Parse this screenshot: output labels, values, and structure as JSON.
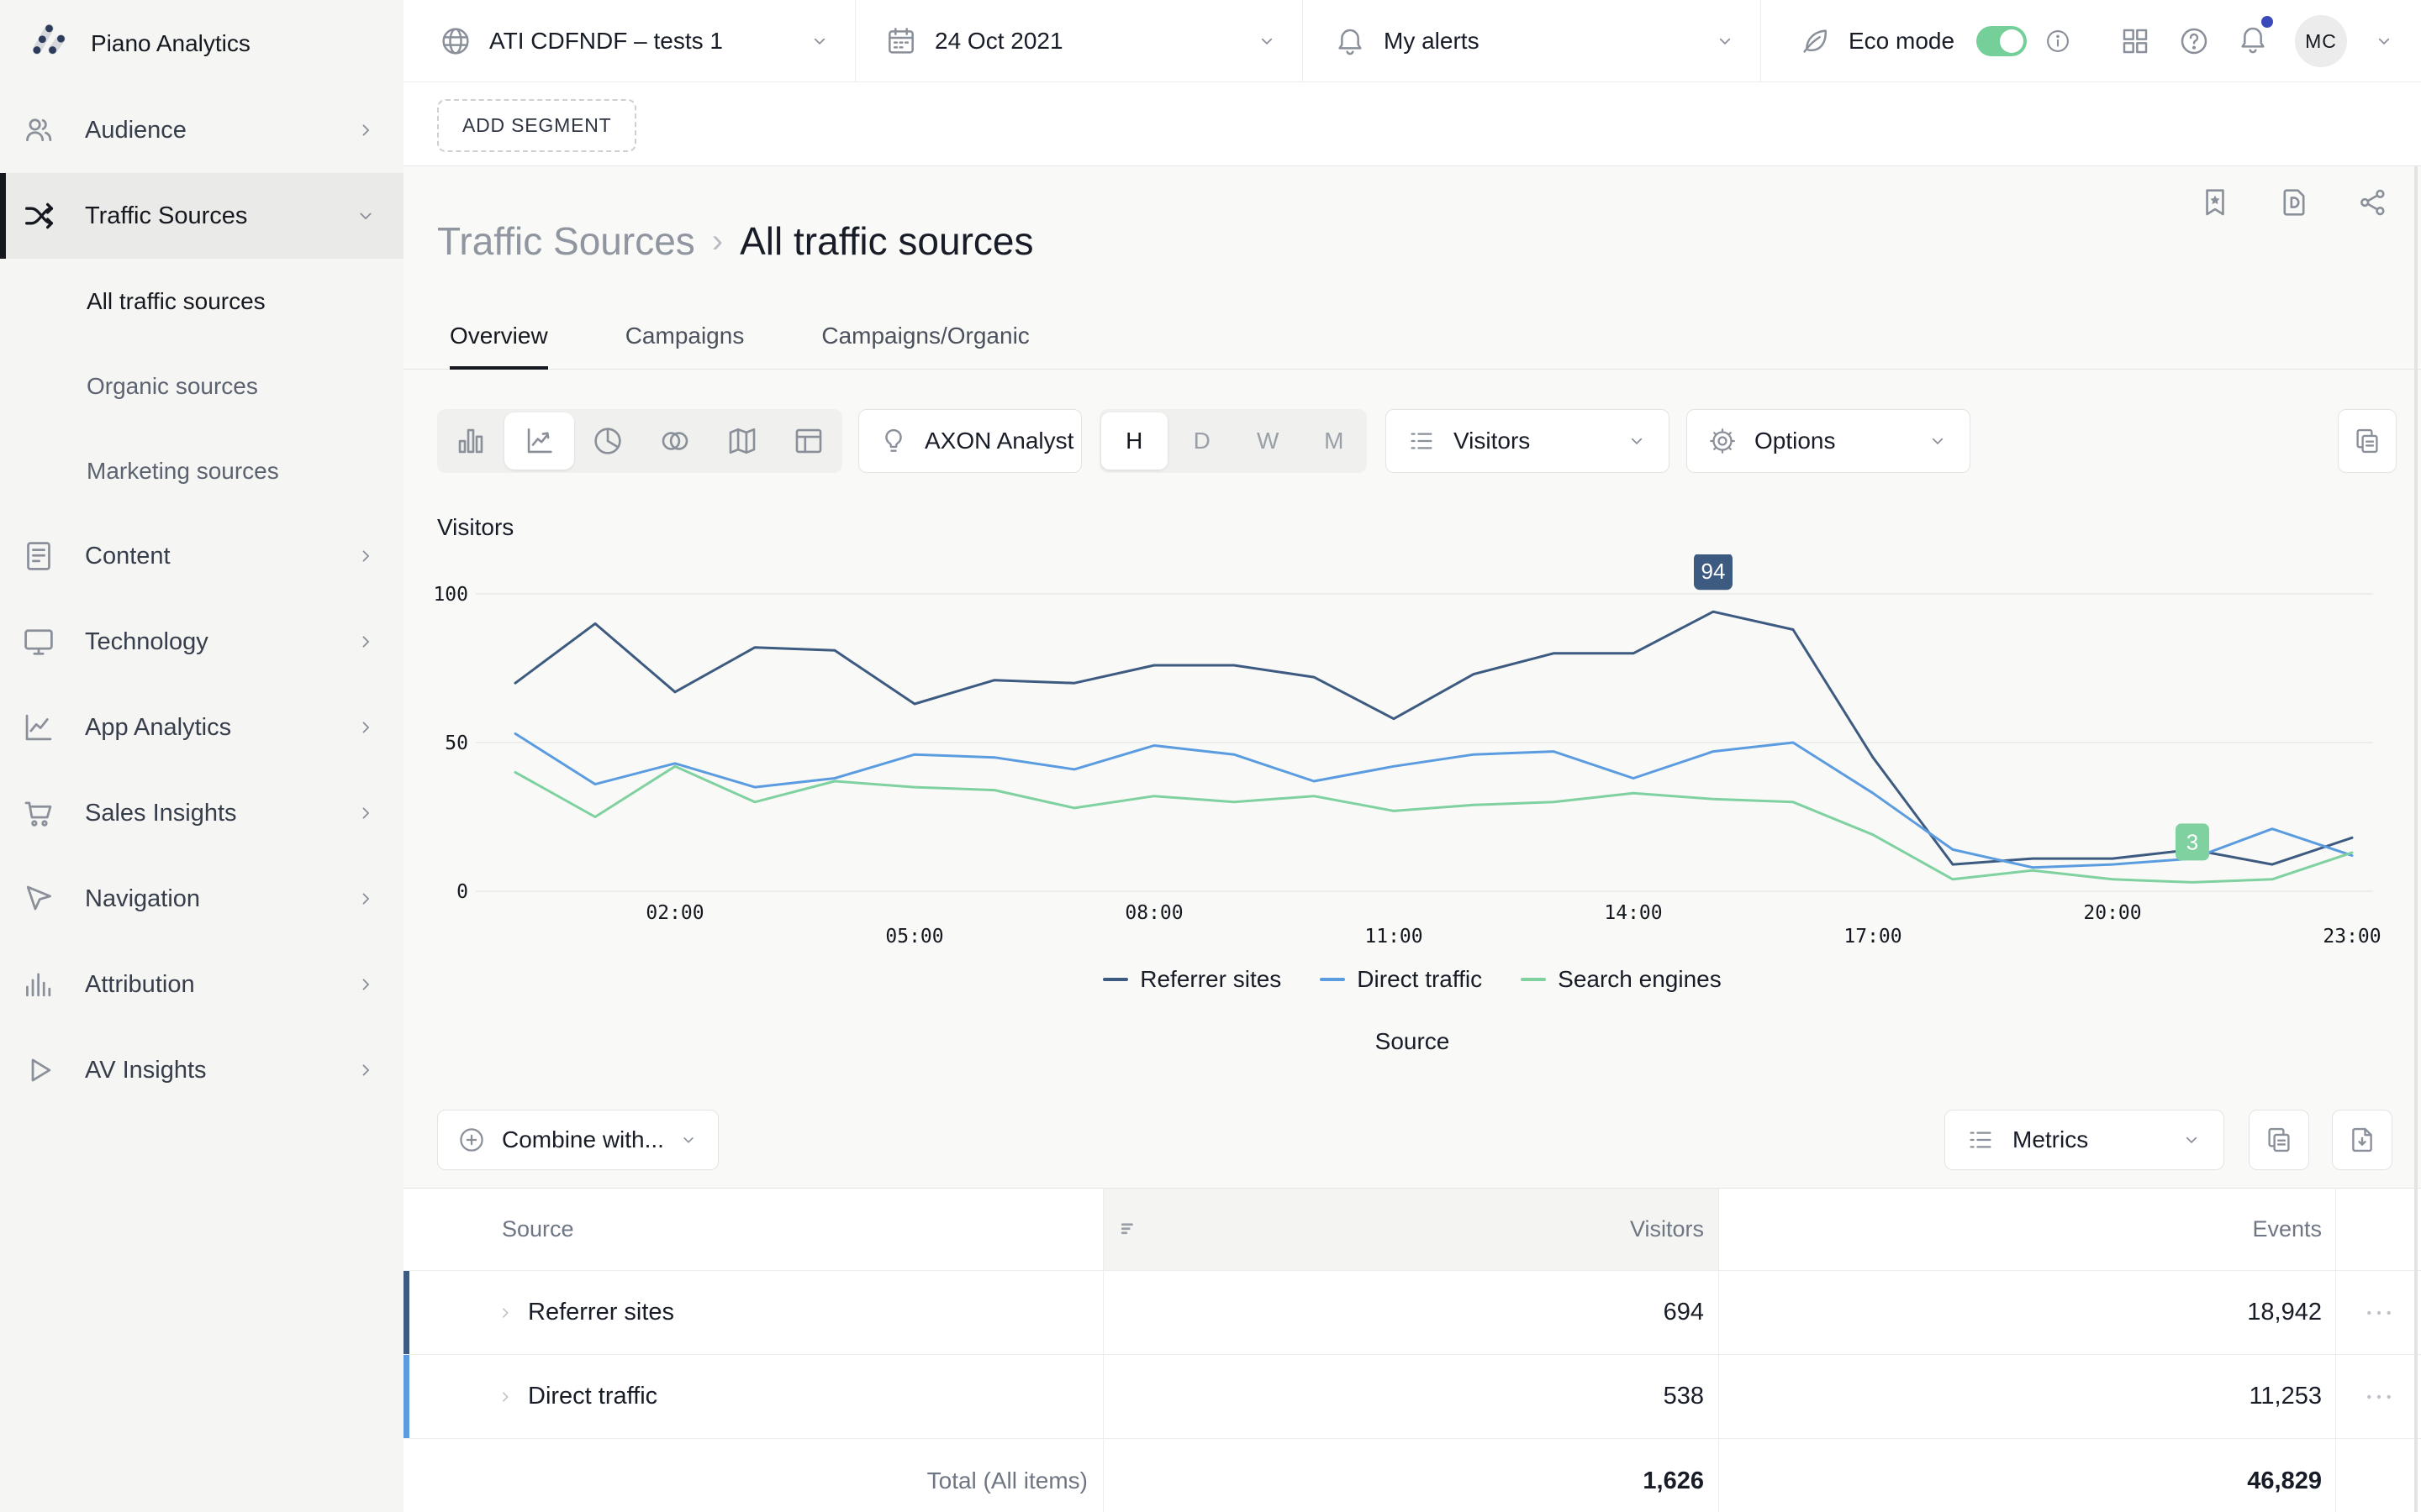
{
  "brand": {
    "name": "Piano Analytics"
  },
  "topbar": {
    "site": {
      "label": "ATI CDFNDF – tests 1"
    },
    "date": {
      "label": "24 Oct 2021"
    },
    "alerts": {
      "label": "My alerts"
    },
    "eco": {
      "label": "Eco mode",
      "enabled": true,
      "toggle_color": "#74cf98"
    },
    "user": {
      "initials": "MC"
    }
  },
  "sidebar": {
    "items": [
      {
        "label": "Audience",
        "icon": "users-icon",
        "chevron": "right",
        "active": false
      },
      {
        "label": "Traffic Sources",
        "icon": "shuffle-icon",
        "chevron": "down",
        "active": true,
        "children": [
          {
            "label": "All traffic sources",
            "active": true
          },
          {
            "label": "Organic sources",
            "active": false
          },
          {
            "label": "Marketing sources",
            "active": false
          }
        ]
      },
      {
        "label": "Content",
        "icon": "document-icon",
        "chevron": "right",
        "active": false
      },
      {
        "label": "Technology",
        "icon": "monitor-icon",
        "chevron": "right",
        "active": false
      },
      {
        "label": "App Analytics",
        "icon": "app-analytics-icon",
        "chevron": "right",
        "active": false
      },
      {
        "label": "Sales Insights",
        "icon": "cart-icon",
        "chevron": "right",
        "active": false
      },
      {
        "label": "Navigation",
        "icon": "cursor-icon",
        "chevron": "right",
        "active": false
      },
      {
        "label": "Attribution",
        "icon": "attribution-bars-icon",
        "chevron": "right",
        "active": false
      },
      {
        "label": "AV Insights",
        "icon": "play-icon",
        "chevron": "right",
        "active": false
      }
    ]
  },
  "segment_bar": {
    "add_segment_label": "ADD SEGMENT"
  },
  "page": {
    "breadcrumb": {
      "parent": "Traffic Sources",
      "separator": "›",
      "current": "All traffic sources"
    },
    "tabs": [
      {
        "label": "Overview",
        "active": true
      },
      {
        "label": "Campaigns",
        "active": false
      },
      {
        "label": "Campaigns/Organic",
        "active": false
      }
    ]
  },
  "toolbar": {
    "chart_types": [
      {
        "icon": "bar-chart-icon",
        "active": false
      },
      {
        "icon": "line-chart-icon",
        "active": true
      },
      {
        "icon": "pie-chart-icon",
        "active": false
      },
      {
        "icon": "venn-icon",
        "active": false
      },
      {
        "icon": "map-icon",
        "active": false
      },
      {
        "icon": "table-icon",
        "active": false
      }
    ],
    "axon_label": "AXON Analyst",
    "granularity": [
      {
        "label": "H",
        "active": true
      },
      {
        "label": "D",
        "active": false
      },
      {
        "label": "W",
        "active": false
      },
      {
        "label": "M",
        "active": false
      }
    ],
    "metric_dropdown": "Visitors",
    "options_dropdown": "Options"
  },
  "chart_data": {
    "type": "line",
    "title": "Visitors",
    "ylabel": "Visitors",
    "xlabel": "",
    "dimension_label": "Source",
    "x": [
      "00:00",
      "01:00",
      "02:00",
      "03:00",
      "04:00",
      "05:00",
      "06:00",
      "07:00",
      "08:00",
      "09:00",
      "10:00",
      "11:00",
      "12:00",
      "13:00",
      "14:00",
      "15:00",
      "16:00",
      "17:00",
      "18:00",
      "19:00",
      "20:00",
      "21:00",
      "22:00",
      "23:00"
    ],
    "x_tick_labels": [
      "02:00",
      "05:00",
      "08:00",
      "11:00",
      "14:00",
      "17:00",
      "20:00",
      "23:00"
    ],
    "ylim": [
      0,
      100
    ],
    "yticks": [
      0,
      50,
      100
    ],
    "grid": "horizontal",
    "legend_position": "bottom",
    "series": [
      {
        "name": "Referrer sites",
        "color": "#3d5a80",
        "values": [
          70,
          90,
          67,
          82,
          81,
          63,
          71,
          70,
          76,
          76,
          72,
          58,
          73,
          80,
          80,
          94,
          88,
          45,
          9,
          11,
          11,
          14,
          9,
          18
        ]
      },
      {
        "name": "Direct traffic",
        "color": "#5b9ce0",
        "values": [
          53,
          36,
          43,
          35,
          38,
          46,
          45,
          41,
          49,
          46,
          37,
          42,
          46,
          47,
          38,
          47,
          50,
          33,
          14,
          8,
          9,
          11,
          21,
          12
        ]
      },
      {
        "name": "Search engines",
        "color": "#7fd1a0",
        "values": [
          40,
          25,
          42,
          30,
          37,
          35,
          34,
          28,
          32,
          30,
          32,
          27,
          29,
          30,
          33,
          31,
          30,
          19,
          4,
          7,
          4,
          3,
          4,
          13
        ]
      }
    ],
    "callouts": [
      {
        "series": "Referrer sites",
        "x": "15:00",
        "value": 94,
        "color": "#3d5a80"
      },
      {
        "series": "Search engines",
        "x": "21:00",
        "value": 3,
        "color": "#7fd1a0"
      }
    ]
  },
  "combine_bar": {
    "combine_label": "Combine with...",
    "metrics_label": "Metrics"
  },
  "table": {
    "columns": [
      "Source",
      "Visitors",
      "Events"
    ],
    "rows": [
      {
        "source": "Referrer sites",
        "visitors": "694",
        "events": "18,942",
        "accent": "#3d5a80"
      },
      {
        "source": "Direct traffic",
        "visitors": "538",
        "events": "11,253",
        "accent": "#5b9ce0"
      }
    ],
    "total": {
      "label": "Total (All items)",
      "visitors": "1,626",
      "events": "46,829"
    }
  }
}
